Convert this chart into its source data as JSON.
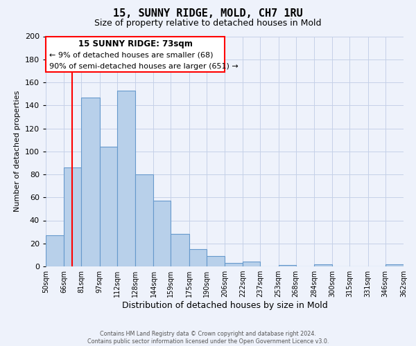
{
  "title": "15, SUNNY RIDGE, MOLD, CH7 1RU",
  "subtitle": "Size of property relative to detached houses in Mold",
  "xlabel": "Distribution of detached houses by size in Mold",
  "ylabel": "Number of detached properties",
  "bar_edges": [
    50,
    66,
    81,
    97,
    112,
    128,
    144,
    159,
    175,
    190,
    206,
    222,
    237,
    253,
    268,
    284,
    300,
    315,
    331,
    346,
    362
  ],
  "bar_heights": [
    27,
    86,
    147,
    104,
    153,
    80,
    57,
    28,
    15,
    9,
    3,
    4,
    0,
    1,
    0,
    2,
    0,
    0,
    0,
    2
  ],
  "bar_color": "#b8d0ea",
  "bar_edge_color": "#6699cc",
  "tick_labels": [
    "50sqm",
    "66sqm",
    "81sqm",
    "97sqm",
    "112sqm",
    "128sqm",
    "144sqm",
    "159sqm",
    "175sqm",
    "190sqm",
    "206sqm",
    "222sqm",
    "237sqm",
    "253sqm",
    "268sqm",
    "284sqm",
    "300sqm",
    "315sqm",
    "331sqm",
    "346sqm",
    "362sqm"
  ],
  "ylim": [
    0,
    200
  ],
  "yticks": [
    0,
    20,
    40,
    60,
    80,
    100,
    120,
    140,
    160,
    180,
    200
  ],
  "redline_x": 73,
  "property_size_label": "15 SUNNY RIDGE: 73sqm",
  "annotation_line1": "← 9% of detached houses are smaller (68)",
  "annotation_line2": "90% of semi-detached houses are larger (651) →",
  "footer_line1": "Contains HM Land Registry data © Crown copyright and database right 2024.",
  "footer_line2": "Contains public sector information licensed under the Open Government Licence v3.0.",
  "background_color": "#eef2fb",
  "grid_color": "#c5d0e8",
  "title_fontsize": 11,
  "subtitle_fontsize": 9,
  "xlabel_fontsize": 9,
  "ylabel_fontsize": 8
}
